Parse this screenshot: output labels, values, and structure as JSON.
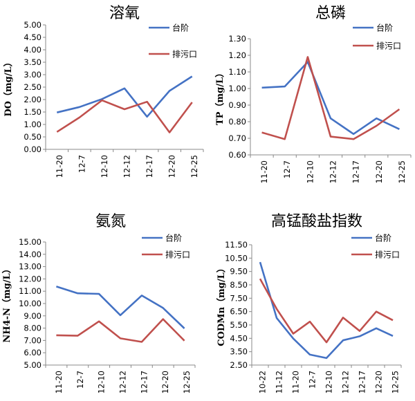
{
  "chart_data": [
    {
      "type": "line",
      "title": "溶氧",
      "ylabel": "DO（mg/L）",
      "ylim": [
        0.0,
        5.0
      ],
      "yticks": [
        "0.00",
        "0.50",
        "1.00",
        "1.50",
        "2.00",
        "2.50",
        "3.00",
        "3.50",
        "4.00",
        "4.50",
        "5.00"
      ],
      "categories": [
        "11-20",
        "12-7",
        "12-10",
        "12-12",
        "12-17",
        "12-20",
        "12-25"
      ],
      "legend_position": "top-right",
      "colors": {
        "台阶": "#4472C4",
        "排污口": "#C0504D"
      },
      "series": [
        {
          "name": "台阶",
          "values": [
            1.48,
            1.7,
            2.02,
            2.45,
            1.31,
            2.35,
            2.93
          ]
        },
        {
          "name": "排污口",
          "values": [
            0.7,
            1.28,
            1.97,
            1.61,
            1.91,
            0.68,
            1.89
          ]
        }
      ]
    },
    {
      "type": "line",
      "title": "总磷",
      "ylabel": "TP（mg/L）",
      "ylim": [
        0.6,
        1.3
      ],
      "yticks": [
        "0.60",
        "0.70",
        "0.80",
        "0.90",
        "1.00",
        "1.10",
        "1.20",
        "1.30"
      ],
      "categories": [
        "11-20",
        "12-7",
        "12-10",
        "12-12",
        "12-17",
        "12-20",
        "12-25"
      ],
      "legend_position": "top-right",
      "colors": {
        "台阶": "#4472C4",
        "排污口": "#C0504D"
      },
      "series": [
        {
          "name": "台阶",
          "values": [
            1.005,
            1.012,
            1.16,
            0.82,
            0.726,
            0.82,
            0.755
          ]
        },
        {
          "name": "排污口",
          "values": [
            0.735,
            0.695,
            1.19,
            0.71,
            0.695,
            0.775,
            0.875
          ]
        }
      ]
    },
    {
      "type": "line",
      "title": "氨氮",
      "ylabel": "NH4-N（mg/L）",
      "ylim": [
        5.0,
        15.0
      ],
      "yticks": [
        "5.00",
        "6.00",
        "7.00",
        "8.00",
        "9.00",
        "10.00",
        "11.00",
        "12.00",
        "13.00",
        "14.00",
        "15.00"
      ],
      "categories": [
        "11-20",
        "12-7",
        "12-10",
        "12-12",
        "12-17",
        "12-20",
        "12-25"
      ],
      "legend_position": "top-right",
      "colors": {
        "台阶": "#4472C4",
        "排污口": "#C0504D"
      },
      "series": [
        {
          "name": "台阶",
          "values": [
            11.38,
            10.83,
            10.78,
            9.05,
            10.65,
            9.64,
            7.98
          ]
        },
        {
          "name": "排污口",
          "values": [
            7.42,
            7.38,
            8.55,
            7.17,
            6.88,
            8.73,
            6.98
          ]
        }
      ]
    },
    {
      "type": "line",
      "title": "高锰酸盐指数",
      "ylabel": "CODMn（mg/L）",
      "ylim": [
        2.5,
        11.5
      ],
      "yticks": [
        "2.50",
        "3.50",
        "4.50",
        "5.50",
        "6.50",
        "7.50",
        "8.50",
        "9.50",
        "10.50",
        "11.50"
      ],
      "categories": [
        "10-22",
        "11-12",
        "11-20",
        "12-7",
        "12-10",
        "12-12",
        "12-17",
        "12-20",
        "12-25"
      ],
      "legend_position": "top-right",
      "colors": {
        "台阶": "#4472C4",
        "排污口": "#C0504D"
      },
      "series": [
        {
          "name": "台阶",
          "values": [
            10.2,
            6.02,
            4.48,
            3.28,
            3.02,
            4.35,
            4.65,
            5.25,
            4.68
          ]
        },
        {
          "name": "排污口",
          "values": [
            8.95,
            6.7,
            4.85,
            5.75,
            4.2,
            6.05,
            5.05,
            6.5,
            5.85
          ]
        }
      ]
    }
  ]
}
